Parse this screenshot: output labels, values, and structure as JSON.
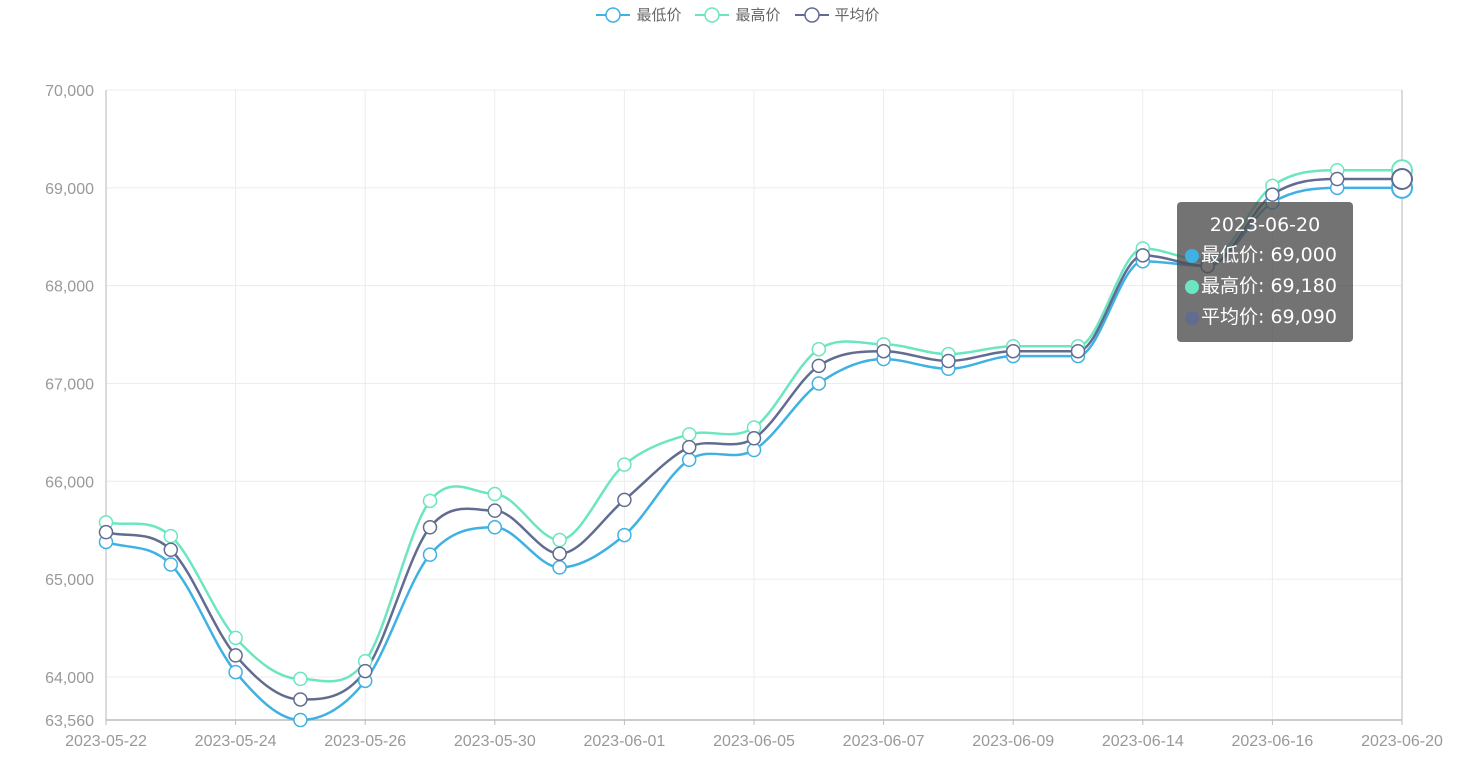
{
  "chart_data": {
    "type": "line",
    "smooth": true,
    "x": [
      "2023-05-22",
      "2023-05-23",
      "2023-05-24",
      "2023-05-25",
      "2023-05-26",
      "2023-05-29",
      "2023-05-30",
      "2023-05-31",
      "2023-06-01",
      "2023-06-02",
      "2023-06-05",
      "2023-06-06",
      "2023-06-07",
      "2023-06-08",
      "2023-06-09",
      "2023-06-12",
      "2023-06-14",
      "2023-06-15",
      "2023-06-16",
      "2023-06-19",
      "2023-06-20"
    ],
    "x_tick_labels": [
      "2023-05-22",
      "2023-05-24",
      "2023-05-26",
      "2023-05-30",
      "2023-06-01",
      "2023-06-05",
      "2023-06-07",
      "2023-06-09",
      "2023-06-14",
      "2023-06-16",
      "2023-06-20"
    ],
    "ylim": [
      63560,
      70000
    ],
    "y_ticks": [
      63560,
      64000,
      65000,
      66000,
      67000,
      68000,
      69000,
      70000
    ],
    "y_tick_labels": [
      "63,560",
      "64,000",
      "65,000",
      "66,000",
      "67,000",
      "68,000",
      "69,000",
      "70,000"
    ],
    "grid": true,
    "legend_position": "top-center",
    "series": [
      {
        "name": "最低价",
        "color": "#3fb1e3",
        "values": [
          65380,
          65150,
          64050,
          63560,
          63960,
          65250,
          65530,
          65120,
          65450,
          66220,
          66320,
          67000,
          67250,
          67150,
          67280,
          67280,
          68250,
          68200,
          68850,
          69000,
          69000
        ]
      },
      {
        "name": "最高价",
        "color": "#6be6c1",
        "values": [
          65580,
          65440,
          64400,
          63980,
          64160,
          65800,
          65870,
          65400,
          66170,
          66480,
          66550,
          67350,
          67400,
          67300,
          67380,
          67380,
          68380,
          68250,
          69020,
          69180,
          69180
        ]
      },
      {
        "name": "平均价",
        "color": "#626c91",
        "values": [
          65480,
          65300,
          64220,
          63770,
          64060,
          65530,
          65700,
          65260,
          65810,
          66350,
          66440,
          67180,
          67330,
          67230,
          67330,
          67330,
          68310,
          68200,
          68930,
          69090,
          69090
        ]
      }
    ]
  },
  "tooltip": {
    "title": "2023-06-20",
    "rows": [
      {
        "text": "最低价: 69,000",
        "color": "#3fb1e3"
      },
      {
        "text": "最高价: 69,180",
        "color": "#6be6c1"
      },
      {
        "text": "平均价: 69,090",
        "color": "#626c91"
      }
    ]
  }
}
